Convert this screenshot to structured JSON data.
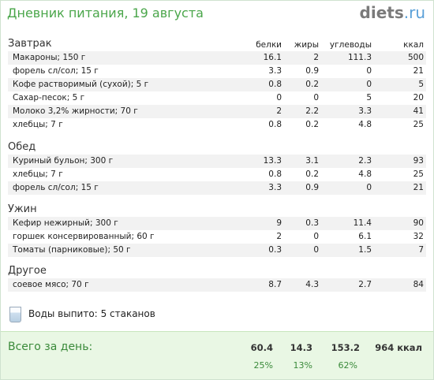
{
  "header": {
    "title": "Дневник питания, 19 августа",
    "logo_main": "diets",
    "logo_suffix": ".ru"
  },
  "columns": [
    "белки",
    "жиры",
    "углеводы",
    "ккал"
  ],
  "sections": [
    {
      "title": "Завтрак",
      "rows": [
        {
          "name": "Макароны; 150 г",
          "protein": "16.1",
          "fat": "2",
          "carbs": "111.3",
          "kcal": "500"
        },
        {
          "name": "форель сл/сол; 15 г",
          "protein": "3.3",
          "fat": "0.9",
          "carbs": "0",
          "kcal": "21"
        },
        {
          "name": "Кофе растворимый (сухой); 5 г",
          "protein": "0.8",
          "fat": "0.2",
          "carbs": "0",
          "kcal": "5"
        },
        {
          "name": "Сахар-песок; 5 г",
          "protein": "0",
          "fat": "0",
          "carbs": "5",
          "kcal": "20"
        },
        {
          "name": "Молоко 3,2% жирности; 70 г",
          "protein": "2",
          "fat": "2.2",
          "carbs": "3.3",
          "kcal": "41"
        },
        {
          "name": "хлебцы; 7 г",
          "protein": "0.8",
          "fat": "0.2",
          "carbs": "4.8",
          "kcal": "25"
        }
      ]
    },
    {
      "title": "Обед",
      "rows": [
        {
          "name": "Куриный бульон; 300 г",
          "protein": "13.3",
          "fat": "3.1",
          "carbs": "2.3",
          "kcal": "93"
        },
        {
          "name": "хлебцы; 7 г",
          "protein": "0.8",
          "fat": "0.2",
          "carbs": "4.8",
          "kcal": "25"
        },
        {
          "name": "форель сл/сол; 15 г",
          "protein": "3.3",
          "fat": "0.9",
          "carbs": "0",
          "kcal": "21"
        }
      ]
    },
    {
      "title": "Ужин",
      "rows": [
        {
          "name": "Кефир нежирный; 300 г",
          "protein": "9",
          "fat": "0.3",
          "carbs": "11.4",
          "kcal": "90"
        },
        {
          "name": "горшек консервированный; 60 г",
          "protein": "2",
          "fat": "0",
          "carbs": "6.1",
          "kcal": "32"
        },
        {
          "name": "Томаты (парниковые); 50 г",
          "protein": "0.3",
          "fat": "0",
          "carbs": "1.5",
          "kcal": "7"
        }
      ]
    },
    {
      "title": "Другое",
      "rows": [
        {
          "name": "соевое мясо; 70 г",
          "protein": "8.7",
          "fat": "4.3",
          "carbs": "2.7",
          "kcal": "84"
        }
      ]
    }
  ],
  "water": {
    "label": "Воды выпито:",
    "value": "5 стаканов"
  },
  "total": {
    "label": "Всего за день:",
    "protein": "60.4",
    "fat": "14.3",
    "carbs": "153.2",
    "kcal": "964 ккал",
    "protein_pct": "25%",
    "fat_pct": "13%",
    "carbs_pct": "62%"
  },
  "colors": {
    "title_green": "#4aa64a",
    "total_bg": "#e9f7e4",
    "row_shade": "#f2f2f2",
    "logo_blue": "#5aa0d8"
  }
}
